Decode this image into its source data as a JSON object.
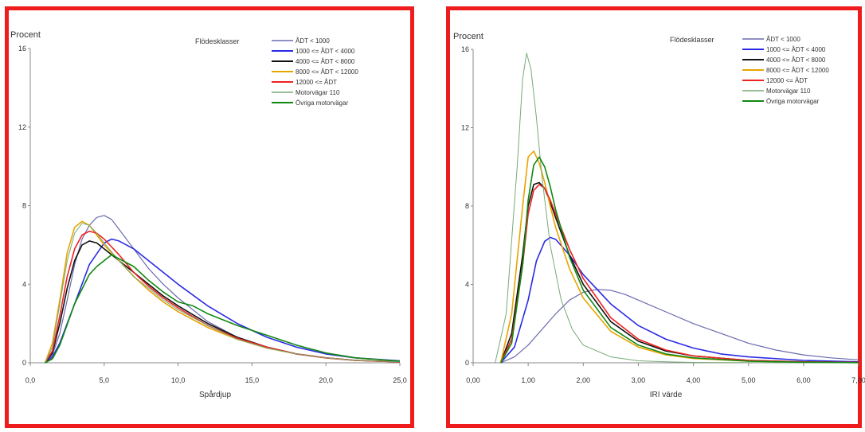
{
  "chart_data": [
    {
      "type": "line",
      "ylabel": "Procent",
      "xlabel": "Spårdjup",
      "legend_title": "Flödesklasser",
      "legend_position": "top-right",
      "grid": false,
      "xlim": [
        0,
        25
      ],
      "ylim": [
        0,
        16
      ],
      "x_ticks": [
        0,
        5,
        10,
        15,
        20,
        25
      ],
      "x_tick_labels": [
        "0,0",
        "5,0",
        "10,0",
        "15,0",
        "20,0",
        "25,0"
      ],
      "y_ticks": [
        0,
        4,
        8,
        12,
        16
      ],
      "y_tick_labels": [
        "0",
        "4",
        "8",
        "12",
        "16"
      ],
      "series": [
        {
          "name": "ÅDT <  1000",
          "color": "#6a6ab0",
          "width": 1.2,
          "x": [
            1,
            1.5,
            2,
            2.5,
            3,
            3.5,
            4,
            4.5,
            5,
            5.5,
            6,
            7,
            8,
            9,
            10,
            12,
            14,
            16,
            18,
            20,
            22,
            25
          ],
          "y": [
            0,
            0.4,
            1.5,
            3.2,
            5.0,
            6.3,
            7.0,
            7.4,
            7.5,
            7.3,
            6.8,
            5.8,
            4.8,
            4.0,
            3.3,
            2.1,
            1.3,
            0.8,
            0.45,
            0.25,
            0.13,
            0.05
          ]
        },
        {
          "name": "1000  <=  ÅDT  <  4000",
          "color": "#2a2ae6",
          "width": 1.6,
          "x": [
            1,
            1.5,
            2,
            3,
            4,
            5,
            5.5,
            6,
            7,
            8,
            9,
            10,
            12,
            14,
            16,
            18,
            20,
            22,
            25
          ],
          "y": [
            0,
            0.3,
            1.0,
            3.0,
            5.0,
            6.1,
            6.3,
            6.2,
            5.8,
            5.2,
            4.6,
            4.0,
            2.9,
            2.0,
            1.3,
            0.8,
            0.45,
            0.25,
            0.1
          ]
        },
        {
          "name": "4000  <=  ÅDT  <  8000",
          "color": "#111111",
          "width": 1.6,
          "x": [
            1,
            1.5,
            2,
            2.5,
            3,
            3.5,
            4,
            4.5,
            5,
            6,
            7,
            8,
            9,
            10,
            12,
            14,
            16,
            18,
            20,
            22,
            25
          ],
          "y": [
            0,
            0.5,
            2.0,
            3.8,
            5.2,
            6.0,
            6.2,
            6.1,
            5.8,
            5.2,
            4.6,
            4.0,
            3.4,
            2.9,
            2.0,
            1.3,
            0.8,
            0.45,
            0.25,
            0.12,
            0.05
          ]
        },
        {
          "name": "8000  <=  ÅDT  <  12000",
          "color": "#e8a400",
          "width": 1.6,
          "x": [
            1,
            1.5,
            2,
            2.5,
            3,
            3.5,
            4,
            4.5,
            5,
            6,
            7,
            8,
            9,
            10,
            12,
            14,
            16,
            18,
            20,
            22,
            25
          ],
          "y": [
            0,
            1.0,
            3.2,
            5.6,
            6.9,
            7.2,
            7.0,
            6.5,
            6.0,
            5.2,
            4.4,
            3.7,
            3.1,
            2.6,
            1.8,
            1.2,
            0.75,
            0.45,
            0.25,
            0.12,
            0.05
          ]
        },
        {
          "name": "12000  <=  ÅDT",
          "color": "#ee2222",
          "width": 1.6,
          "x": [
            1,
            1.5,
            2,
            2.5,
            3,
            3.5,
            4,
            4.5,
            5,
            6,
            7,
            8,
            9,
            10,
            12,
            14,
            16,
            18,
            20,
            22,
            25
          ],
          "y": [
            0,
            0.6,
            2.4,
            4.4,
            5.8,
            6.5,
            6.7,
            6.6,
            6.3,
            5.5,
            4.6,
            3.9,
            3.3,
            2.8,
            1.9,
            1.25,
            0.8,
            0.45,
            0.25,
            0.12,
            0.05
          ]
        },
        {
          "name": "Motorvägar 110",
          "color": "#77aa77",
          "width": 1.0,
          "x": [
            1,
            1.5,
            2,
            2.5,
            3,
            3.5,
            4,
            4.5,
            5,
            6,
            7,
            8,
            9,
            10,
            12,
            14,
            16,
            18,
            20,
            22,
            25
          ],
          "y": [
            0,
            0.8,
            3.0,
            5.2,
            6.6,
            7.1,
            7.0,
            6.6,
            6.1,
            5.2,
            4.4,
            3.8,
            3.2,
            2.7,
            1.9,
            1.2,
            0.75,
            0.45,
            0.25,
            0.12,
            0.05
          ]
        },
        {
          "name": "Övriga motorvägar",
          "color": "#118811",
          "width": 1.6,
          "x": [
            1,
            1.5,
            2,
            3,
            4,
            4.5,
            5,
            5.5,
            6,
            7,
            8,
            9,
            10,
            11,
            12,
            13,
            14,
            16,
            18,
            20,
            22,
            25
          ],
          "y": [
            0,
            0.2,
            0.9,
            3.0,
            4.5,
            4.9,
            5.2,
            5.5,
            5.3,
            4.9,
            4.2,
            3.6,
            3.1,
            2.9,
            2.5,
            2.2,
            1.9,
            1.4,
            0.9,
            0.5,
            0.25,
            0.08
          ]
        }
      ]
    },
    {
      "type": "line",
      "ylabel": "Procent",
      "xlabel": "IRI värde",
      "legend_title": "Flödesklasser",
      "legend_position": "top-right",
      "grid": false,
      "xlim": [
        0,
        7
      ],
      "ylim": [
        0,
        16
      ],
      "x_ticks": [
        0,
        1,
        2,
        3,
        4,
        5,
        6,
        7
      ],
      "x_tick_labels": [
        "0,00",
        "1,00",
        "2,00",
        "3,00",
        "4,00",
        "5,00",
        "6,00",
        "7,00"
      ],
      "y_ticks": [
        0,
        4,
        8,
        12,
        16
      ],
      "y_tick_labels": [
        "0",
        "4",
        "8",
        "12",
        "16"
      ],
      "series": [
        {
          "name": "ÅDT <  1000",
          "color": "#6a6ab0",
          "width": 1.2,
          "x": [
            0.5,
            0.75,
            1.0,
            1.25,
            1.5,
            1.75,
            2.0,
            2.25,
            2.5,
            2.75,
            3.0,
            3.5,
            4.0,
            4.5,
            5.0,
            5.5,
            6.0,
            6.5,
            7.0
          ],
          "y": [
            0,
            0.3,
            0.9,
            1.7,
            2.5,
            3.2,
            3.6,
            3.75,
            3.7,
            3.5,
            3.2,
            2.6,
            2.0,
            1.5,
            1.0,
            0.65,
            0.4,
            0.25,
            0.15
          ]
        },
        {
          "name": "1000  <=  ÅDT  <  4000",
          "color": "#2a2ae6",
          "width": 1.6,
          "x": [
            0.5,
            0.75,
            1.0,
            1.15,
            1.3,
            1.4,
            1.5,
            1.75,
            2.0,
            2.5,
            3.0,
            3.5,
            4.0,
            4.5,
            5.0,
            6.0,
            7.0
          ],
          "y": [
            0,
            0.8,
            3.2,
            5.2,
            6.2,
            6.4,
            6.3,
            5.5,
            4.5,
            3.0,
            1.9,
            1.2,
            0.75,
            0.45,
            0.3,
            0.12,
            0.05
          ]
        },
        {
          "name": "4000  <=  ÅDT  <  8000",
          "color": "#111111",
          "width": 1.6,
          "x": [
            0.5,
            0.7,
            0.9,
            1.0,
            1.1,
            1.2,
            1.3,
            1.4,
            1.5,
            1.75,
            2.0,
            2.5,
            3.0,
            3.5,
            4.0,
            5.0,
            6.0,
            7.0
          ],
          "y": [
            0,
            1.5,
            5.5,
            8.0,
            9.1,
            9.2,
            8.9,
            8.2,
            7.4,
            5.5,
            4.0,
            2.1,
            1.1,
            0.6,
            0.35,
            0.12,
            0.05,
            0.02
          ]
        },
        {
          "name": "8000  <=  ÅDT  <  12000",
          "color": "#e8a400",
          "width": 1.6,
          "x": [
            0.5,
            0.7,
            0.9,
            1.0,
            1.1,
            1.2,
            1.3,
            1.4,
            1.5,
            1.75,
            2.0,
            2.5,
            3.0,
            3.5,
            4.0,
            5.0,
            6.0,
            7.0
          ],
          "y": [
            0,
            2.5,
            8.0,
            10.5,
            10.8,
            10.2,
            9.2,
            8.0,
            6.9,
            4.8,
            3.3,
            1.6,
            0.8,
            0.4,
            0.22,
            0.08,
            0.03,
            0.01
          ]
        },
        {
          "name": "12000  <=  ÅDT",
          "color": "#ee2222",
          "width": 1.6,
          "x": [
            0.5,
            0.7,
            0.9,
            1.0,
            1.1,
            1.2,
            1.3,
            1.4,
            1.5,
            1.75,
            2.0,
            2.5,
            3.0,
            3.5,
            4.0,
            5.0,
            6.0,
            7.0
          ],
          "y": [
            0,
            1.2,
            5.0,
            7.6,
            8.8,
            9.1,
            8.9,
            8.3,
            7.6,
            5.8,
            4.3,
            2.3,
            1.2,
            0.65,
            0.35,
            0.12,
            0.05,
            0.02
          ]
        },
        {
          "name": "Motorvägar 110",
          "color": "#77aa77",
          "width": 1.0,
          "x": [
            0.4,
            0.6,
            0.8,
            0.9,
            0.97,
            1.05,
            1.15,
            1.25,
            1.4,
            1.6,
            1.8,
            2.0,
            2.5,
            3.0,
            3.5,
            4.0,
            5.0,
            7.0
          ],
          "y": [
            0,
            2.5,
            10.0,
            14.5,
            15.8,
            15.0,
            12.5,
            9.5,
            6.0,
            3.2,
            1.7,
            0.9,
            0.3,
            0.1,
            0.05,
            0.02,
            0.01,
            0
          ]
        },
        {
          "name": "Övriga motorvägar",
          "color": "#118811",
          "width": 1.6,
          "x": [
            0.5,
            0.7,
            0.9,
            1.0,
            1.1,
            1.2,
            1.3,
            1.4,
            1.5,
            1.75,
            2.0,
            2.5,
            3.0,
            3.5,
            4.0,
            5.0,
            6.0,
            7.0
          ],
          "y": [
            0,
            1.0,
            5.0,
            8.3,
            10.1,
            10.5,
            10.0,
            9.0,
            7.8,
            5.4,
            3.7,
            1.8,
            0.9,
            0.45,
            0.25,
            0.08,
            0.03,
            0.01
          ]
        }
      ]
    }
  ]
}
